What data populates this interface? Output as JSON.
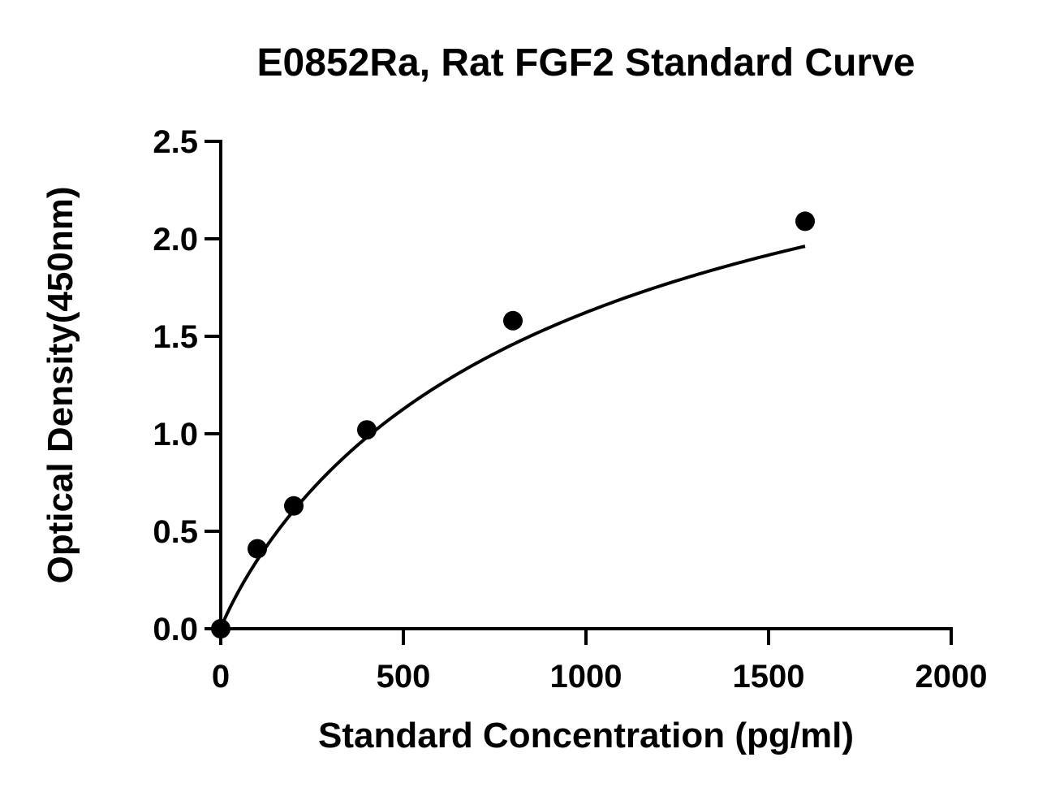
{
  "chart_data": {
    "type": "scatter",
    "title": "E0852Ra, Rat FGF2 Standard Curve",
    "xlabel": "Standard Concentration (pg/ml)",
    "ylabel": "Optical Density(450nm)",
    "xlim": [
      0,
      2000
    ],
    "ylim": [
      0,
      2.5
    ],
    "x_ticks": [
      0,
      500,
      1000,
      1500,
      2000
    ],
    "x_tick_labels": [
      "0",
      "500",
      "1000",
      "1500",
      "2000"
    ],
    "y_ticks": [
      0,
      0.5,
      1.0,
      1.5,
      2.0,
      2.5
    ],
    "y_tick_labels": [
      "0.0",
      "0.5",
      "1.0",
      "1.5",
      "2.0",
      "2.5"
    ],
    "grid": false,
    "legend": "none",
    "series": [
      {
        "points": [
          {
            "x": 0,
            "y": 0.0
          },
          {
            "x": 100,
            "y": 0.41
          },
          {
            "x": 200,
            "y": 0.63
          },
          {
            "x": 400,
            "y": 1.02
          },
          {
            "x": 800,
            "y": 1.58
          },
          {
            "x": 1600,
            "y": 2.09
          }
        ],
        "color": "#000000"
      }
    ],
    "fit_curve": {
      "type": "4PL",
      "A": 0,
      "D": 3.2,
      "C": 970,
      "B": 0.92,
      "color": "#000000"
    }
  }
}
